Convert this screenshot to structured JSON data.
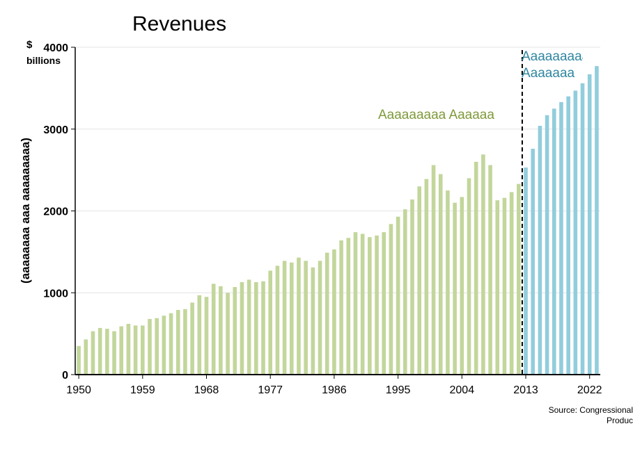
{
  "chart_data": {
    "type": "bar",
    "title": "Revenues",
    "unit_dollar": "$",
    "unit_word": "billions",
    "ylabel": "(aaaaaaaa aaa aaaaaaaaa)",
    "xlabel": "",
    "ylim": [
      0,
      4000
    ],
    "yticks": [
      0,
      1000,
      2000,
      3000,
      4000
    ],
    "x_tick_labels": [
      "1950",
      "1959",
      "1968",
      "1977",
      "1986",
      "1995",
      "2004",
      "2013",
      "2022"
    ],
    "grid": true,
    "divider_year": 2012.5,
    "colors": {
      "actual": "#c3d69b",
      "projected": "#92cddc",
      "actual_text": "#7f9a3a",
      "projected_text": "#2f86a0",
      "divider": "#000000"
    },
    "series": [
      {
        "name": "Aaaaaaaaa Aaaaaa",
        "x": [
          1950,
          1951,
          1952,
          1953,
          1954,
          1955,
          1956,
          1957,
          1958,
          1959,
          1960,
          1961,
          1962,
          1963,
          1964,
          1965,
          1966,
          1967,
          1968,
          1969,
          1970,
          1971,
          1972,
          1973,
          1974,
          1975,
          1976,
          1977,
          1978,
          1979,
          1980,
          1981,
          1982,
          1983,
          1984,
          1985,
          1986,
          1987,
          1988,
          1989,
          1990,
          1991,
          1992,
          1993,
          1994,
          1995,
          1996,
          1997,
          1998,
          1999,
          2000,
          2001,
          2002,
          2003,
          2004,
          2005,
          2006,
          2007,
          2008,
          2009,
          2010,
          2011,
          2012
        ],
        "values": [
          350,
          430,
          530,
          570,
          560,
          530,
          590,
          620,
          600,
          600,
          680,
          690,
          720,
          750,
          790,
          800,
          880,
          970,
          950,
          1110,
          1080,
          1000,
          1070,
          1130,
          1160,
          1130,
          1140,
          1270,
          1330,
          1390,
          1370,
          1430,
          1390,
          1310,
          1390,
          1490,
          1530,
          1640,
          1670,
          1740,
          1720,
          1680,
          1700,
          1740,
          1840,
          1930,
          2020,
          2140,
          2300,
          2390,
          2560,
          2450,
          2250,
          2100,
          2170,
          2400,
          2600,
          2690,
          2560,
          2130,
          2160,
          2230,
          2330
        ]
      },
      {
        "name": "Aaaaaaaaa Aaaaaaa",
        "x": [
          2013,
          2014,
          2015,
          2016,
          2017,
          2018,
          2019,
          2020,
          2021,
          2022,
          2023
        ],
        "values": [
          2530,
          2760,
          3040,
          3170,
          3250,
          3330,
          3400,
          3470,
          3560,
          3670,
          3770
        ]
      }
    ],
    "annotations": {
      "actual_label": "Aaaaaaaaa Aaaaaa",
      "projected_line1": "Aaaaaaaaa",
      "projected_line2": "Aaaaaaa"
    },
    "source_line1": "Source: Congressional",
    "source_line2": "Produc"
  }
}
